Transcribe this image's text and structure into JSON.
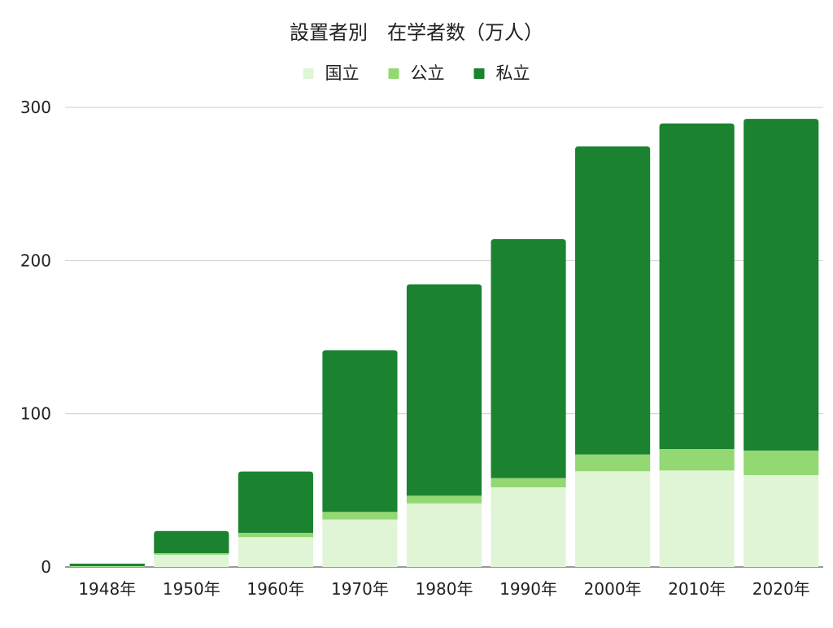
{
  "chart_data": {
    "type": "bar",
    "stacked": true,
    "title": "設置者別　在学者数（万人）",
    "xlabel": "",
    "ylabel": "",
    "categories": [
      "1948年",
      "1950年",
      "1960年",
      "1970年",
      "1980年",
      "1990年",
      "2000年",
      "2010年",
      "2020年"
    ],
    "series": [
      {
        "name": "国立",
        "color": "#e0f5d6",
        "values": [
          0.3,
          8.0,
          19.5,
          31.0,
          41.5,
          52.0,
          62.5,
          63.0,
          60.0
        ]
      },
      {
        "name": "公立",
        "color": "#93d872",
        "values": [
          0.2,
          1.0,
          2.8,
          5.0,
          5.0,
          6.0,
          11.0,
          14.0,
          16.0
        ]
      },
      {
        "name": "私立",
        "color": "#1b8330",
        "values": [
          1.7,
          14.5,
          40.0,
          105.5,
          138.0,
          156.0,
          201.0,
          212.5,
          216.5
        ]
      }
    ],
    "ylim": [
      0,
      300
    ],
    "yticks": [
      0,
      100,
      200,
      300
    ],
    "grid": true,
    "legend": "top-center"
  }
}
